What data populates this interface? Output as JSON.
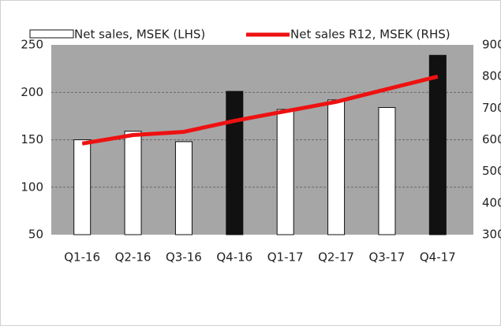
{
  "chart_data": {
    "type": "bar",
    "categories": [
      "Q1-16",
      "Q2-16",
      "Q3-16",
      "Q4-16",
      "Q1-17",
      "Q2-17",
      "Q3-17",
      "Q4-17"
    ],
    "series": [
      {
        "name": "Net sales, MSEK (LHS)",
        "color": "#ffffff",
        "colors": [
          "#ffffff",
          "#ffffff",
          "#ffffff",
          "#111111",
          "#ffffff",
          "#ffffff",
          "#ffffff",
          "#111111"
        ],
        "values": [
          150,
          159,
          148,
          201,
          182,
          192,
          184,
          239
        ]
      },
      {
        "name": "Net sales R12, MSEK (RHS)",
        "type": "line",
        "axis": "y2",
        "color": "#ee1111",
        "values": [
          588,
          615,
          625,
          660,
          690,
          720,
          760,
          800
        ]
      }
    ],
    "ylim": [
      50,
      250
    ],
    "yticks": [
      50,
      100,
      150,
      200,
      250
    ],
    "y2lim": [
      300,
      900
    ],
    "y2ticks": [
      300,
      400,
      500,
      600,
      700,
      800,
      900
    ],
    "grid": true,
    "legend": "top"
  }
}
